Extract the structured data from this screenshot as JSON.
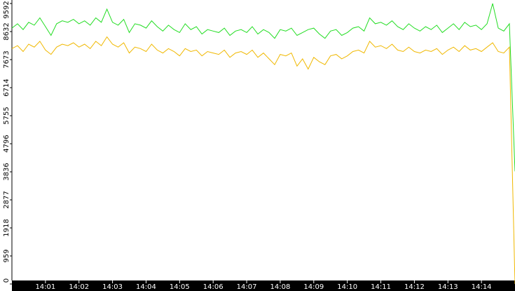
{
  "chart_data": {
    "type": "line",
    "categories": [
      null,
      null,
      null,
      null,
      null,
      null,
      "14:01",
      null,
      null,
      null,
      null,
      null,
      "14:02",
      null,
      null,
      null,
      null,
      null,
      "14:03",
      null,
      null,
      null,
      null,
      null,
      "14:04",
      null,
      null,
      null,
      null,
      null,
      "14:05",
      null,
      null,
      null,
      null,
      null,
      "14:06",
      null,
      null,
      null,
      null,
      null,
      "14:07",
      null,
      null,
      null,
      null,
      null,
      "14:08",
      null,
      null,
      null,
      null,
      null,
      "14:09",
      null,
      null,
      null,
      null,
      null,
      "14:10",
      null,
      null,
      null,
      null,
      null,
      "14:11",
      null,
      null,
      null,
      null,
      null,
      "14:12",
      null,
      null,
      null,
      null,
      null,
      "14:13",
      null,
      null,
      null,
      null,
      null,
      "14:14",
      null,
      null,
      null,
      null,
      null,
      null
    ],
    "series": [
      {
        "color": "#22dd22",
        "values": [
          8750,
          8900,
          8700,
          8950,
          8850,
          9100,
          8800,
          8500,
          8900,
          9000,
          8950,
          9050,
          8900,
          9000,
          8850,
          9100,
          8950,
          9400,
          8950,
          8850,
          9050,
          8600,
          8900,
          8850,
          8750,
          9000,
          8800,
          8650,
          8850,
          8700,
          8600,
          8900,
          8700,
          8800,
          8550,
          8700,
          8650,
          8600,
          8750,
          8500,
          8650,
          8700,
          8600,
          8800,
          8550,
          8700,
          8600,
          8400,
          8700,
          8650,
          8750,
          8500,
          8600,
          8700,
          8750,
          8550,
          8400,
          8650,
          8700,
          8500,
          8600,
          8750,
          8800,
          8650,
          9100,
          8900,
          8950,
          8850,
          9000,
          8800,
          8700,
          8900,
          8750,
          8650,
          8800,
          8700,
          8850,
          8600,
          8750,
          8900,
          8700,
          8950,
          8800,
          8850,
          8700,
          8900,
          9592,
          8750,
          8650,
          8900,
          3850
        ]
      },
      {
        "color": "#f0b800",
        "values": [
          8050,
          8150,
          7950,
          8200,
          8100,
          8300,
          8000,
          7850,
          8100,
          8200,
          8150,
          8250,
          8100,
          8200,
          8050,
          8300,
          8150,
          8450,
          8200,
          8100,
          8250,
          7900,
          8100,
          8050,
          7950,
          8200,
          8000,
          7900,
          8050,
          7950,
          7800,
          8050,
          7950,
          8000,
          7800,
          7950,
          7900,
          7850,
          8000,
          7750,
          7900,
          7950,
          7850,
          8000,
          7750,
          7900,
          7700,
          7500,
          7850,
          7800,
          7900,
          7450,
          7700,
          7350,
          7750,
          7600,
          7500,
          7800,
          7850,
          7700,
          7800,
          7950,
          8000,
          7900,
          8300,
          8100,
          8150,
          8050,
          8200,
          8000,
          7950,
          8100,
          7950,
          7900,
          8000,
          7950,
          8050,
          7850,
          8000,
          8100,
          7950,
          8150,
          8000,
          8050,
          7950,
          8100,
          8250,
          7950,
          7900,
          8100,
          0
        ]
      }
    ],
    "ylim": [
      0,
      9592
    ],
    "yticks": [
      0,
      959,
      1918,
      2877,
      3836,
      4796,
      5755,
      6714,
      7673,
      8632,
      9592
    ]
  }
}
